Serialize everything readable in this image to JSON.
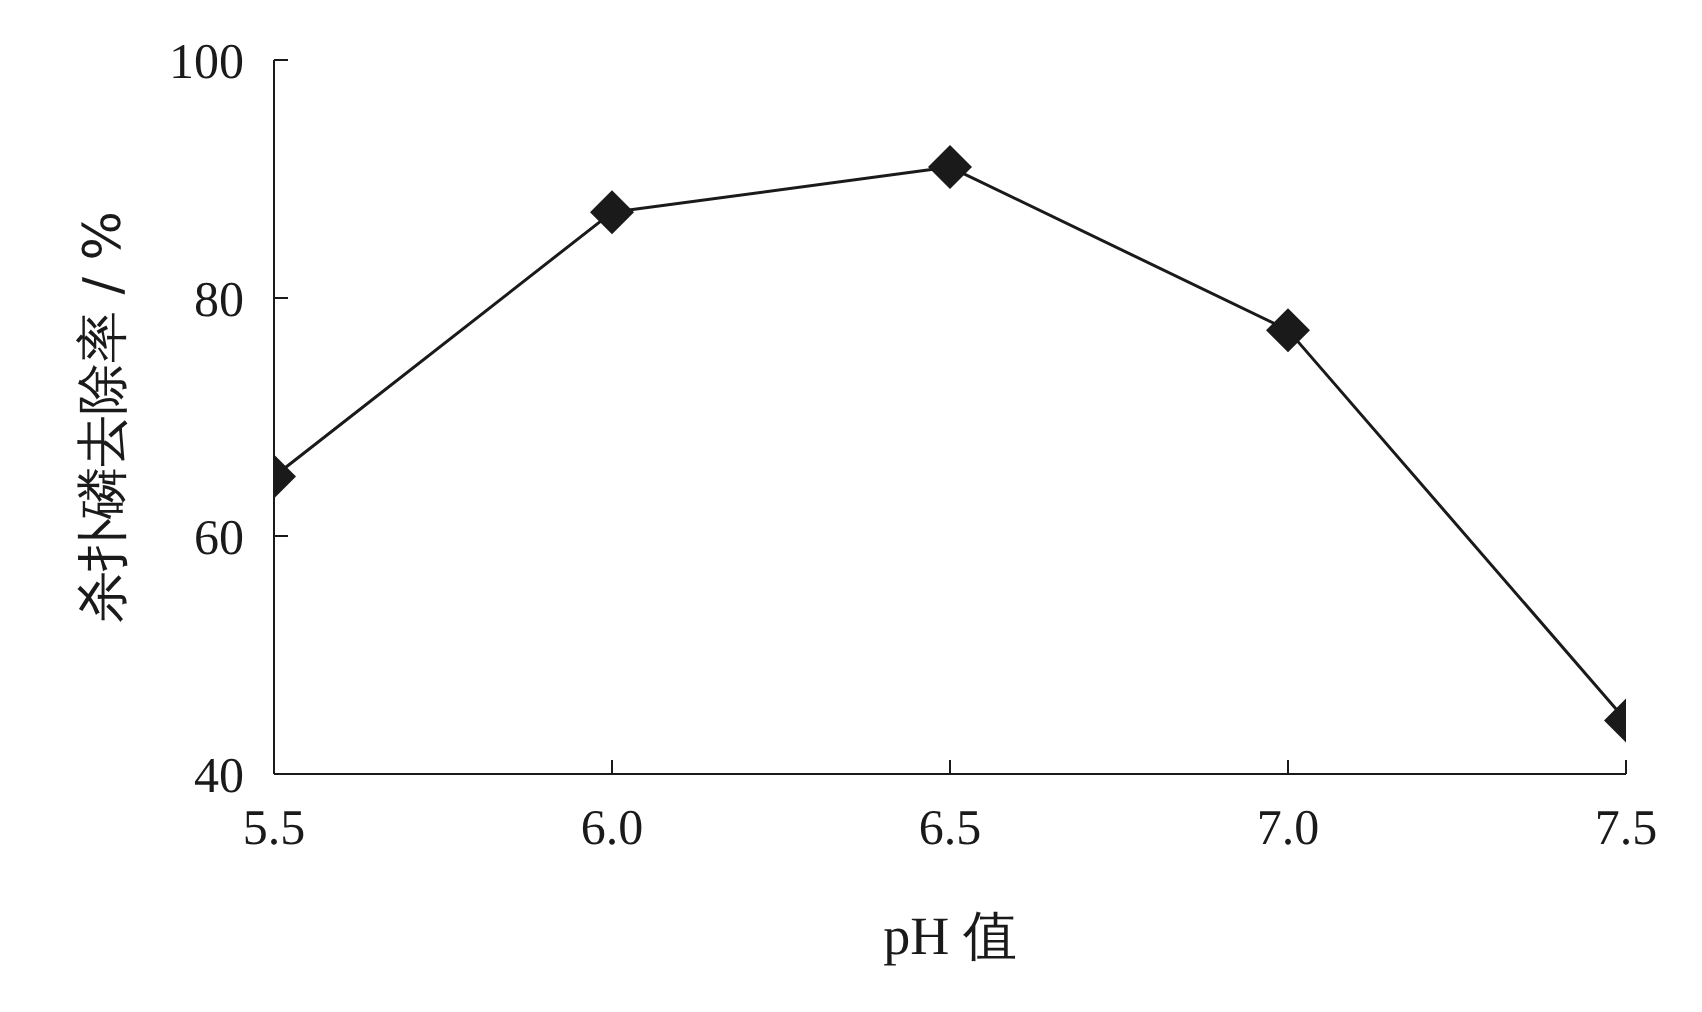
{
  "chart_data": {
    "type": "line",
    "xlabel": "pH 值",
    "ylabel": "杀扑磷去除率 / %",
    "x": [
      5.5,
      6.0,
      6.5,
      7.0,
      7.5
    ],
    "series": [
      {
        "color": "#1a1a1a",
        "values": [
          65,
          87.2,
          91,
          77.3,
          44.5
        ]
      }
    ],
    "xlim": [
      5.5,
      7.5
    ],
    "xticks": [
      {
        "value": 5.5,
        "label": "5.5"
      },
      {
        "value": 6.0,
        "label": "6.0"
      },
      {
        "value": 6.5,
        "label": "6.5"
      },
      {
        "value": 7.0,
        "label": "7.0"
      },
      {
        "value": 7.5,
        "label": "7.5"
      }
    ],
    "ylim": [
      40,
      100
    ],
    "yticks": [
      40,
      60,
      80,
      100
    ],
    "grid": false,
    "marker": "diamond",
    "line_style": "solid"
  }
}
